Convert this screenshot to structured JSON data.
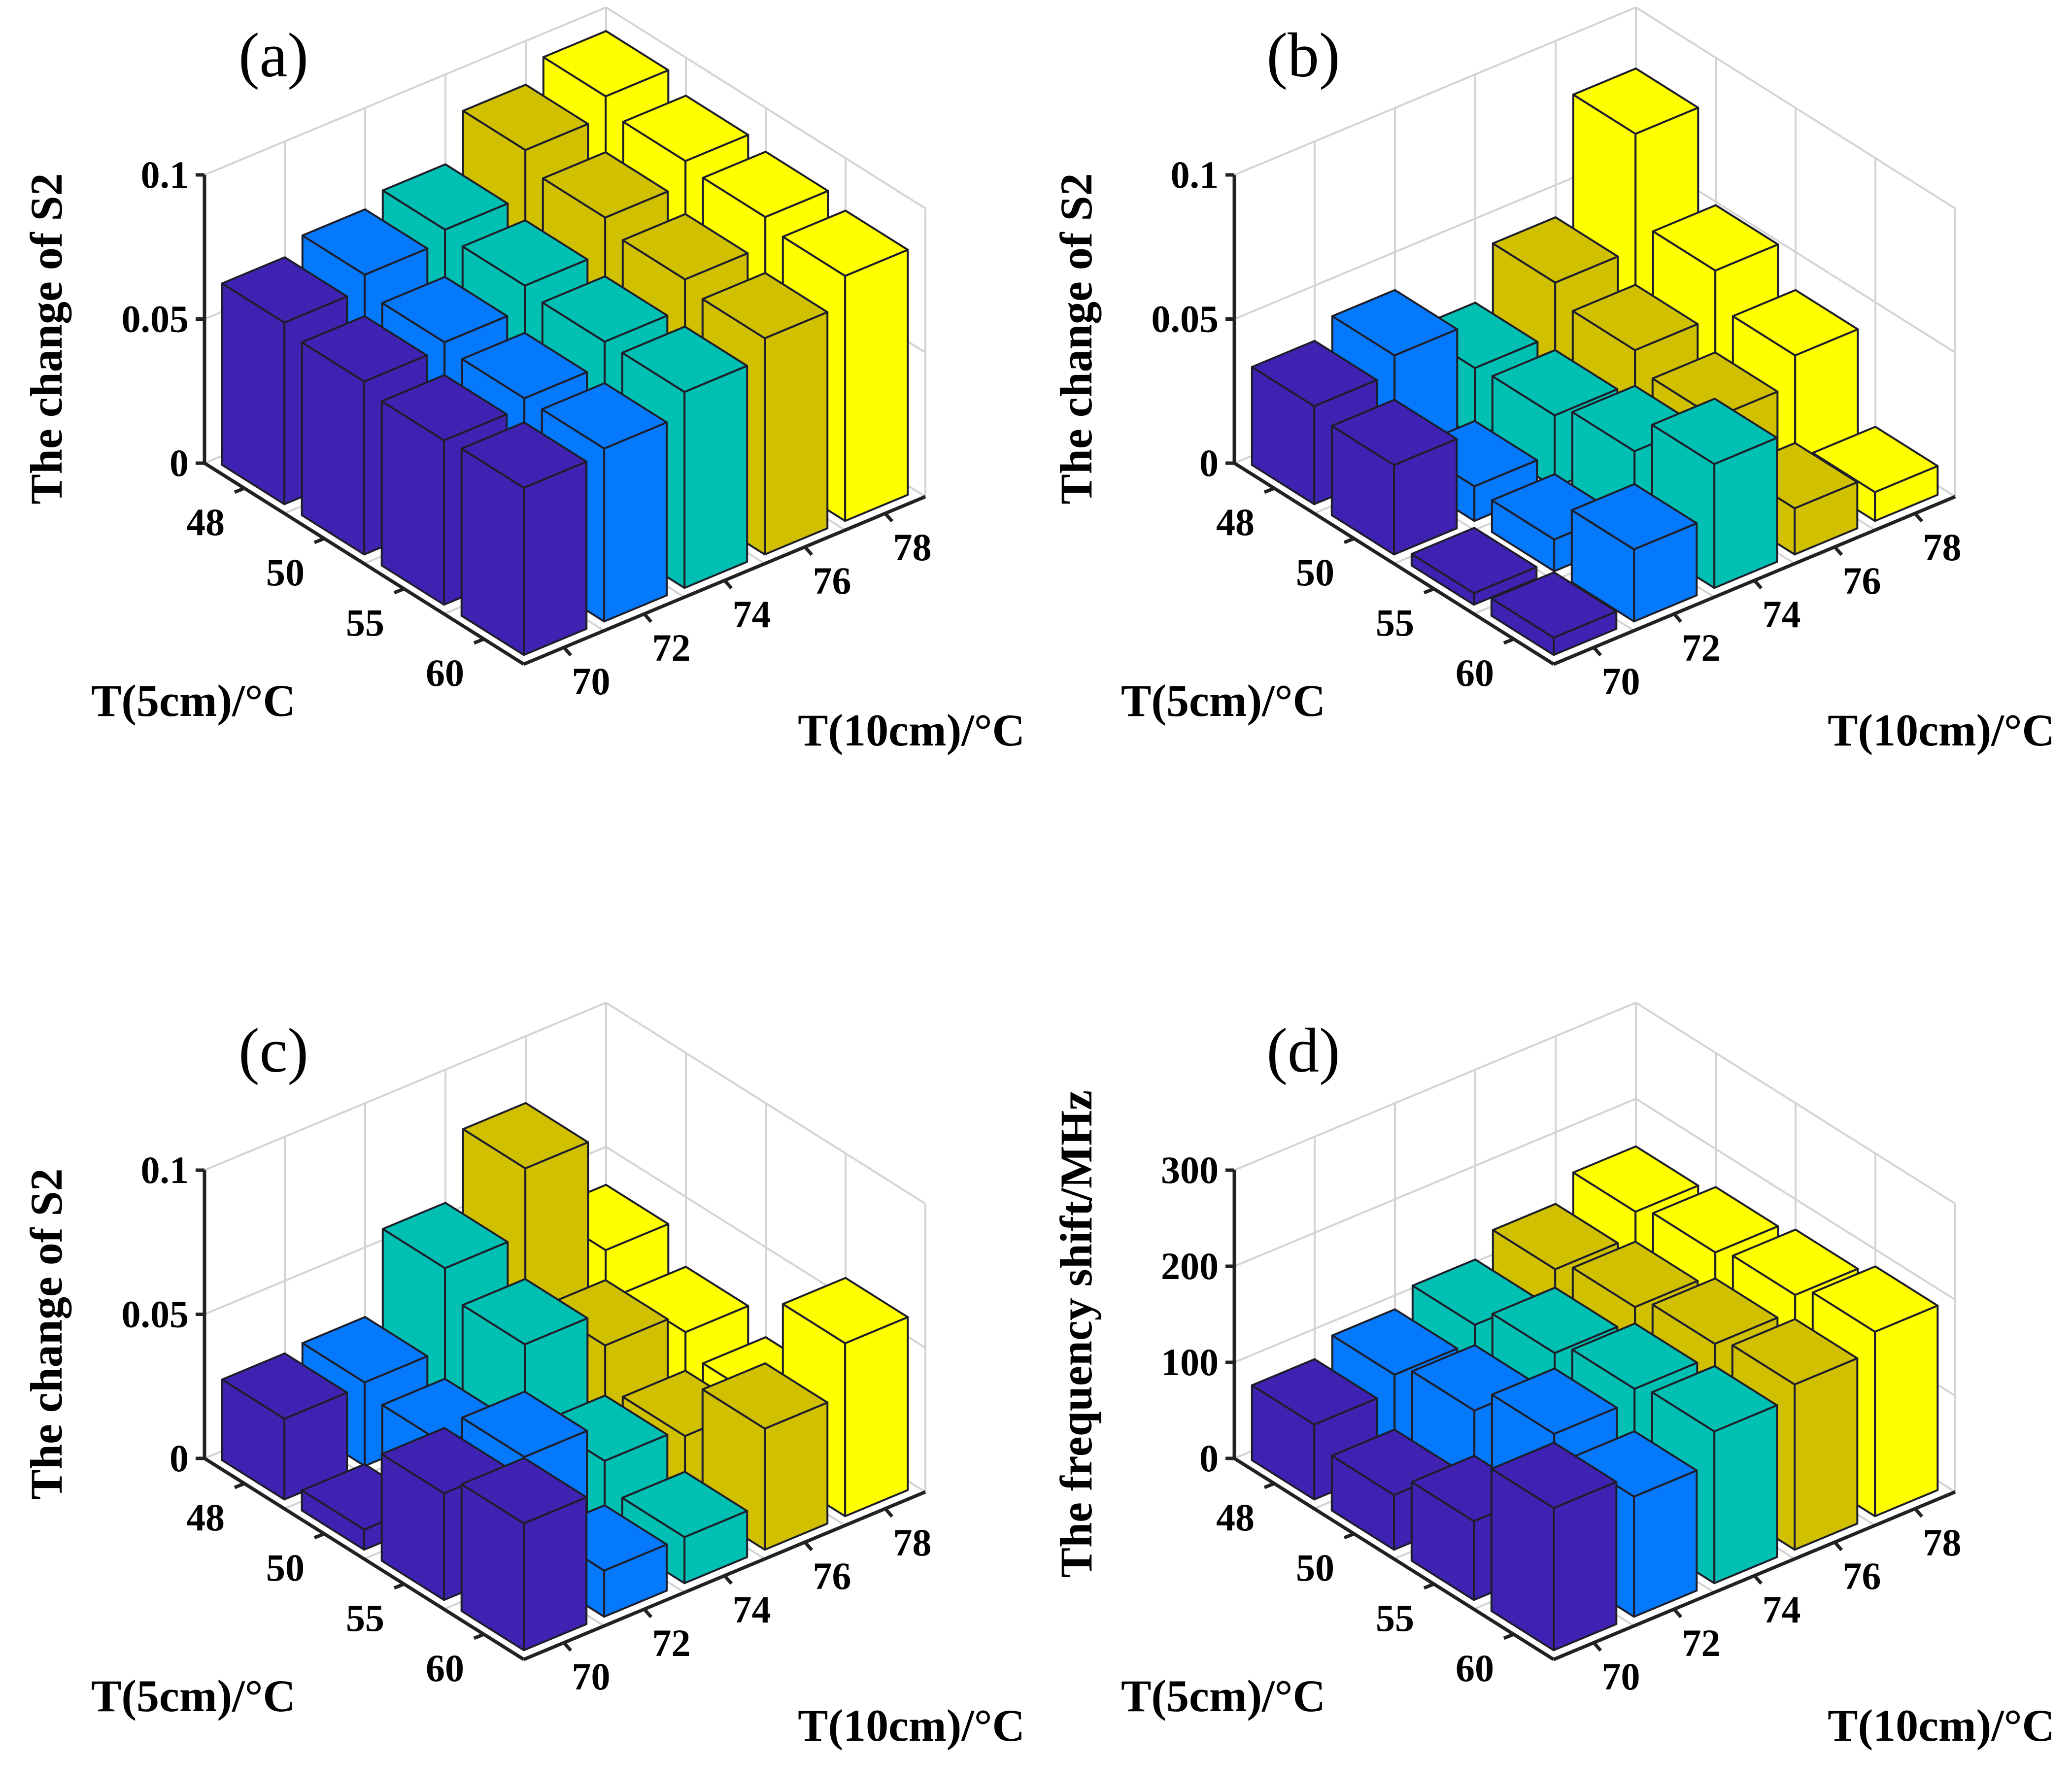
{
  "chart_data": [
    {
      "type": "bar3d",
      "panel": "(a)",
      "title": "(a)",
      "zlabel": "The change of S2",
      "xlabel": "T(5cm)/°C",
      "ylabel": "T(10cm)/°C",
      "x_ticks": [
        "48",
        "50",
        "55",
        "60"
      ],
      "y_ticks": [
        "70",
        "72",
        "74",
        "76",
        "78"
      ],
      "z_ticks": [
        "0",
        "0.05",
        "0.1"
      ],
      "zlim": [
        0,
        0.1
      ],
      "values": [
        [
          0.063,
          0.068,
          0.072,
          0.088,
          0.095
        ],
        [
          0.06,
          0.062,
          0.07,
          0.082,
          0.09
        ],
        [
          0.057,
          0.06,
          0.068,
          0.078,
          0.088
        ],
        [
          0.058,
          0.06,
          0.068,
          0.075,
          0.085
        ]
      ]
    },
    {
      "type": "bar3d",
      "panel": "(b)",
      "title": "(b)",
      "zlabel": "The change of S2",
      "xlabel": "T(5cm)/°C",
      "ylabel": "T(10cm)/°C",
      "x_ticks": [
        "48",
        "50",
        "55",
        "60"
      ],
      "y_ticks": [
        "70",
        "72",
        "74",
        "76",
        "78"
      ],
      "z_ticks": [
        "0",
        "0.05",
        "0.1"
      ],
      "zlim": [
        0,
        0.1
      ],
      "values": [
        [
          0.034,
          0.04,
          0.024,
          0.042,
          0.082
        ],
        [
          0.031,
          0.012,
          0.025,
          0.036,
          0.052
        ],
        [
          0.004,
          0.011,
          0.03,
          0.03,
          0.04
        ],
        [
          0.006,
          0.025,
          0.043,
          0.016,
          0.01
        ]
      ]
    },
    {
      "type": "bar3d",
      "panel": "(c)",
      "title": "(c)",
      "zlabel": "The change of S2",
      "xlabel": "T(5cm)/°C",
      "ylabel": "T(10cm)/°C",
      "x_ticks": [
        "48",
        "50",
        "55",
        "60"
      ],
      "y_ticks": [
        "70",
        "72",
        "74",
        "76",
        "78"
      ],
      "z_ticks": [
        "0",
        "0.05",
        "0.1"
      ],
      "zlim": [
        0,
        0.1
      ],
      "values": [
        [
          0.028,
          0.029,
          0.057,
          0.08,
          0.04
        ],
        [
          0.007,
          0.025,
          0.048,
          0.036,
          0.029
        ],
        [
          0.037,
          0.038,
          0.025,
          0.022,
          0.022
        ],
        [
          0.044,
          0.016,
          0.016,
          0.042,
          0.06
        ]
      ]
    },
    {
      "type": "bar3d",
      "panel": "(d)",
      "title": "(d)",
      "zlabel": "The frequency shift/MHz",
      "xlabel": "T(5cm)/°C",
      "ylabel": "T(10cm)/°C",
      "x_ticks": [
        "48",
        "50",
        "55",
        "60"
      ],
      "y_ticks": [
        "70",
        "72",
        "74",
        "76",
        "78"
      ],
      "z_ticks": [
        "0",
        "100",
        "200",
        "300"
      ],
      "zlim": [
        0,
        300
      ],
      "values": [
        [
          78,
          95,
          112,
          135,
          160
        ],
        [
          57,
          110,
          135,
          148,
          170
        ],
        [
          82,
          138,
          150,
          162,
          178
        ],
        [
          148,
          125,
          158,
          172,
          192
        ]
      ]
    }
  ],
  "colors": [
    "#3f22b2",
    "#0579fc",
    "#00bfb3",
    "#d1c000",
    "#ffff00"
  ]
}
